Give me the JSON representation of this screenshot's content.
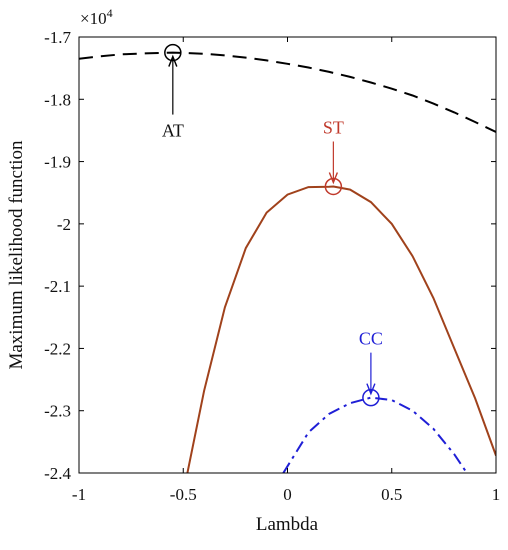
{
  "chart_data": {
    "type": "line",
    "xlabel": "Lambda",
    "ylabel": "Maximum likelihood function",
    "y_multiplier": "×10",
    "y_multiplier_exponent": "4",
    "xlim": [
      -1,
      1
    ],
    "ylim": [
      -2.4,
      -1.7
    ],
    "y_scale_factor": 10000,
    "grid": false,
    "x_ticks": [
      -1,
      -0.5,
      0,
      0.5,
      1
    ],
    "x_tick_labels": [
      "-1",
      "-0.5",
      "0",
      "0.5",
      "1"
    ],
    "y_ticks": [
      -1.7,
      -1.8,
      -1.9,
      -2.0,
      -2.1,
      -2.2,
      -2.3,
      -2.4
    ],
    "y_tick_labels": [
      "-1.7",
      "-1.8",
      "-1.9",
      "-2",
      "-2.1",
      "-2.2",
      "-2.3",
      "-2.4"
    ],
    "series": [
      {
        "color": "#000000",
        "dash": "dashed",
        "x": [
          -1,
          -0.9,
          -0.8,
          -0.7,
          -0.6,
          -0.55,
          -0.5,
          -0.4,
          -0.3,
          -0.2,
          -0.1,
          0,
          0.1,
          0.2,
          0.3,
          0.4,
          0.5,
          0.6,
          0.7,
          0.8,
          0.9,
          1
        ],
        "y": [
          -1.735,
          -1.731,
          -1.728,
          -1.7265,
          -1.7255,
          -1.725,
          -1.7255,
          -1.727,
          -1.7295,
          -1.733,
          -1.7375,
          -1.743,
          -1.749,
          -1.756,
          -1.764,
          -1.773,
          -1.783,
          -1.794,
          -1.807,
          -1.821,
          -1.8365,
          -1.8525
        ]
      },
      {
        "color": "#a0421c",
        "dash": "solid",
        "x": [
          -0.48,
          -0.4,
          -0.3,
          -0.2,
          -0.1,
          0,
          0.1,
          0.2,
          0.22,
          0.3,
          0.4,
          0.5,
          0.6,
          0.7,
          0.8,
          0.9,
          1
        ],
        "y": [
          -2.4,
          -2.268,
          -2.134,
          -2.039,
          -1.982,
          -1.953,
          -1.941,
          -1.9405,
          -1.94,
          -1.945,
          -1.965,
          -2.0,
          -2.052,
          -2.119,
          -2.2,
          -2.28,
          -2.372
        ]
      },
      {
        "color": "#1f1fd6",
        "dash": "dashdot",
        "x": [
          -0.02,
          0.1,
          0.2,
          0.3,
          0.4,
          0.5,
          0.6,
          0.7,
          0.8,
          0.86
        ],
        "y": [
          -2.4,
          -2.335,
          -2.305,
          -2.288,
          -2.279,
          -2.283,
          -2.3,
          -2.329,
          -2.37,
          -2.4
        ]
      }
    ],
    "markers": [
      {
        "label": "AT",
        "x": -0.55,
        "y": -1.725,
        "color": "#000000"
      },
      {
        "label": "ST",
        "x": 0.22,
        "y": -1.94,
        "color": "#c0392b"
      },
      {
        "label": "CC",
        "x": 0.4,
        "y": -2.279,
        "color": "#1f1fd6"
      }
    ]
  }
}
